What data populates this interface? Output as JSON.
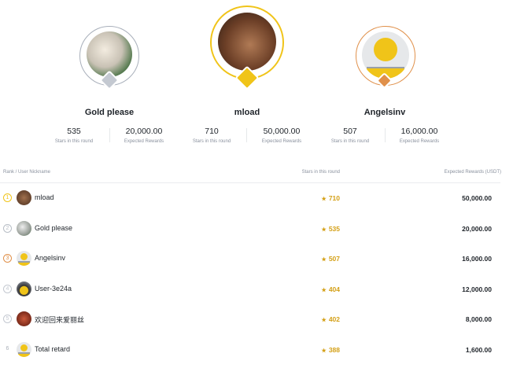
{
  "podium": [
    {
      "place": 2,
      "name": "Gold please",
      "stars": "535",
      "stars_label": "Stars in this round",
      "reward": "20,000.00",
      "reward_label": "Expected Rewards",
      "color": "#a8afba"
    },
    {
      "place": 1,
      "name": "mload",
      "stars": "710",
      "stars_label": "Stars in this round",
      "reward": "50,000.00",
      "reward_label": "Expected Rewards",
      "color": "#f0c419"
    },
    {
      "place": 3,
      "name": "Angelsinv",
      "stars": "507",
      "stars_label": "Stars in this round",
      "reward": "16,000.00",
      "reward_label": "Expected Rewards",
      "color": "#e0904a"
    }
  ],
  "table": {
    "headers": {
      "rank_user": "Rank / User Nickname",
      "stars": "Stars in this round",
      "rewards": "Expected Rewards (USDT)"
    },
    "rows": [
      {
        "rank": "1",
        "name": "mload",
        "stars": "710",
        "reward": "50,000.00"
      },
      {
        "rank": "2",
        "name": "Gold please",
        "stars": "535",
        "reward": "20,000.00"
      },
      {
        "rank": "3",
        "name": "Angelsinv",
        "stars": "507",
        "reward": "16,000.00"
      },
      {
        "rank": "4",
        "name": "User-3e24a",
        "stars": "404",
        "reward": "12,000.00"
      },
      {
        "rank": "5",
        "name": "欢迎回来爱丽丝",
        "stars": "402",
        "reward": "8,000.00"
      },
      {
        "rank": "6",
        "name": "Total retard",
        "stars": "388",
        "reward": "1,600.00"
      }
    ]
  },
  "colors": {
    "star": "#d4a017",
    "gold": "#f0c419",
    "silver": "#a8afba",
    "bronze": "#e0904a"
  }
}
